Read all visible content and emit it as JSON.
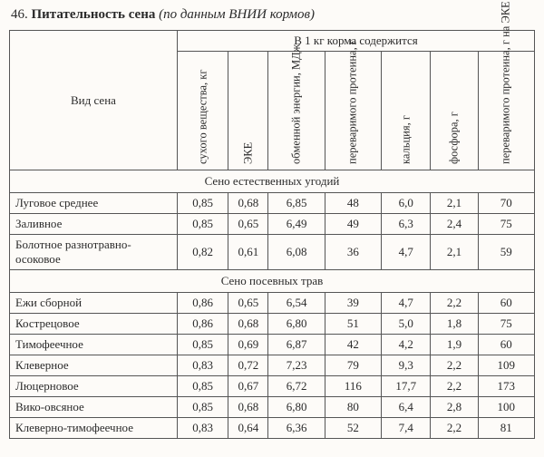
{
  "title": {
    "number": "46.",
    "bold": "Питательность сена",
    "italic": "(по данным ВНИИ кормов)"
  },
  "header": {
    "rowhead": "Вид сена",
    "grouphead": "В 1 кг корма содержится",
    "cols": [
      "сухого вещества, кг",
      "ЭКЕ",
      "обменной энергии, МДж",
      "переваримого протеина, г",
      "кальция, г",
      "фосфора, г",
      "переваримого протеина, г на ЭКЕ"
    ]
  },
  "sections": [
    {
      "caption": "Сено естественных угодий",
      "rows": [
        {
          "label": "Луговое среднее",
          "v": [
            "0,85",
            "0,68",
            "6,85",
            "48",
            "6,0",
            "2,1",
            "70"
          ]
        },
        {
          "label": "Заливное",
          "v": [
            "0,85",
            "0,65",
            "6,49",
            "49",
            "6,3",
            "2,4",
            "75"
          ]
        },
        {
          "label": "Болотное разнотравно-осоковое",
          "v": [
            "0,82",
            "0,61",
            "6,08",
            "36",
            "4,7",
            "2,1",
            "59"
          ]
        }
      ]
    },
    {
      "caption": "Сено посевных трав",
      "rows": [
        {
          "label": "Ежи сборной",
          "v": [
            "0,86",
            "0,65",
            "6,54",
            "39",
            "4,7",
            "2,2",
            "60"
          ]
        },
        {
          "label": "Кострецовое",
          "v": [
            "0,86",
            "0,68",
            "6,80",
            "51",
            "5,0",
            "1,8",
            "75"
          ]
        },
        {
          "label": "Тимофеечное",
          "v": [
            "0,85",
            "0,69",
            "6,87",
            "42",
            "4,2",
            "1,9",
            "60"
          ]
        },
        {
          "label": "Клеверное",
          "v": [
            "0,83",
            "0,72",
            "7,23",
            "79",
            "9,3",
            "2,2",
            "109"
          ]
        },
        {
          "label": "Люцерновое",
          "v": [
            "0,85",
            "0,67",
            "6,72",
            "116",
            "17,7",
            "2,2",
            "173"
          ]
        },
        {
          "label": "Вико-овсяное",
          "v": [
            "0,85",
            "0,68",
            "6,80",
            "80",
            "6,4",
            "2,8",
            "100"
          ]
        },
        {
          "label": "Клеверно-тимофеечное",
          "v": [
            "0,83",
            "0,64",
            "6,36",
            "52",
            "7,4",
            "2,2",
            "81"
          ]
        }
      ]
    }
  ]
}
